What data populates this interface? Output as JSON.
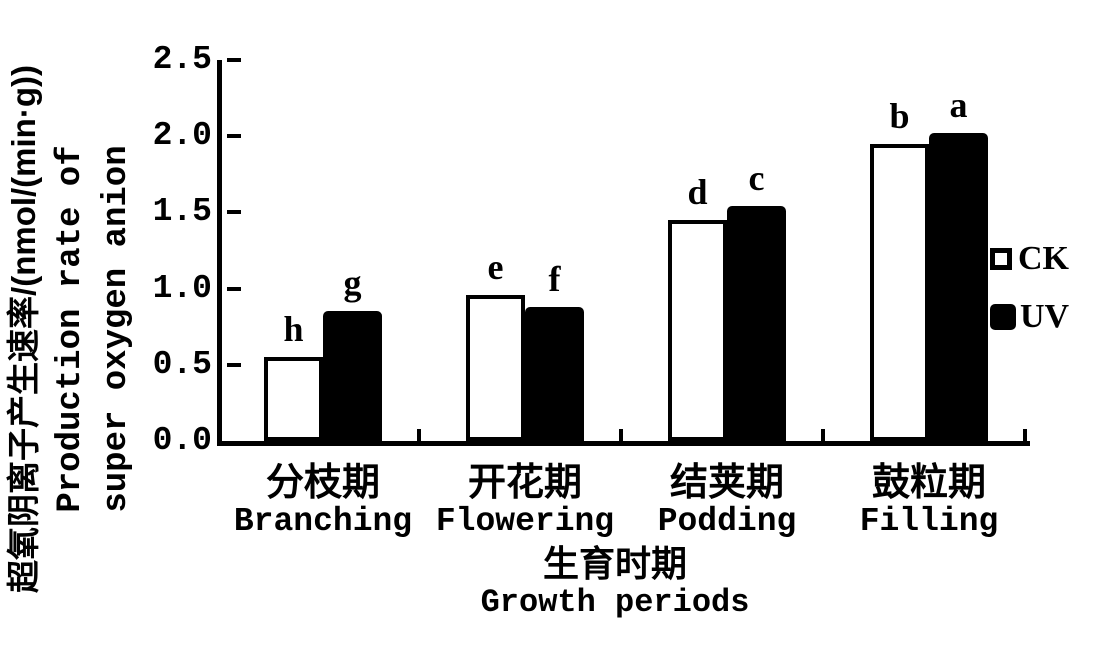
{
  "chart_data": {
    "type": "bar",
    "categories": [
      {
        "zh": "分枝期",
        "en": "Branching"
      },
      {
        "zh": "开花期",
        "en": "Flowering"
      },
      {
        "zh": "结荚期",
        "en": "Podding"
      },
      {
        "zh": "鼓粒期",
        "en": "Filling"
      }
    ],
    "series": [
      {
        "name": "CK",
        "fill": "#ffffff",
        "values": [
          0.55,
          0.96,
          1.45,
          1.95
        ],
        "sig_letters": [
          "h",
          "e",
          "d",
          "b"
        ]
      },
      {
        "name": "UV",
        "fill": "#000000",
        "values": [
          0.85,
          0.88,
          1.54,
          2.02
        ],
        "sig_letters": [
          "g",
          "f",
          "c",
          "a"
        ]
      }
    ],
    "ylim": [
      0,
      2.5
    ],
    "ytick_labels": [
      "0.0",
      "0.5",
      "1.0",
      "1.5",
      "2.0",
      "2.5"
    ],
    "ylabel": {
      "zh": "超氧阴离子产生速率/(nmol/(min·g))",
      "en_line1": "Production rate of",
      "en_line2": "super oxygen anion"
    },
    "xlabel": {
      "zh": "生育时期",
      "en": "Growth periods"
    },
    "grid": "off",
    "legend_position": "right",
    "axis_color": "#000000",
    "background_color": "#ffffff"
  }
}
